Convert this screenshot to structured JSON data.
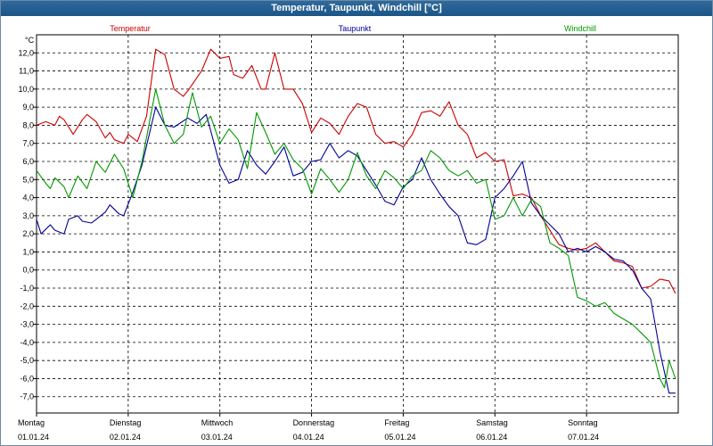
{
  "window": {
    "title": "Temperatur, Taupunkt, Windchill [°C]"
  },
  "chart_data": {
    "type": "line",
    "title": "Temperatur, Taupunkt, Windchill [°C]",
    "ylabel": "°C",
    "ylim": [
      -7.9,
      13.0
    ],
    "yticks": [
      12.0,
      11.0,
      10.0,
      9.0,
      8.0,
      7.0,
      6.0,
      5.0,
      4.0,
      3.0,
      2.0,
      1.0,
      0.0,
      -1.0,
      -2.0,
      -3.0,
      -4.0,
      -5.0,
      -6.0,
      -7.0
    ],
    "ytick_labels": [
      "12,0",
      "11,0",
      "10,0",
      "9,0",
      "8,0",
      "7,0",
      "6,0",
      "5,0",
      "4,0",
      "3,0",
      "2,0",
      "1,0",
      "0,0",
      "-1,0",
      "-2,0",
      "-3,0",
      "-4,0",
      "-5,0",
      "-6,0",
      "-7,0"
    ],
    "xlim": [
      0,
      7
    ],
    "x_days": [
      {
        "day": "Montag",
        "date": "01.01.24"
      },
      {
        "day": "Dienstag",
        "date": "02.01.24"
      },
      {
        "day": "Mittwoch",
        "date": "03.01.24"
      },
      {
        "day": "Donnerstag",
        "date": "04.01.24"
      },
      {
        "day": "Freitag",
        "date": "05.01.24"
      },
      {
        "day": "Samstag",
        "date": "06.01.24"
      },
      {
        "day": "Sonntag",
        "date": "07.01.24"
      }
    ],
    "grid": true,
    "legend_position": "top",
    "series": [
      {
        "name": "Temperatur",
        "color": "#cc0000",
        "x": [
          0,
          0.1,
          0.2,
          0.25,
          0.3,
          0.4,
          0.5,
          0.55,
          0.65,
          0.75,
          0.8,
          0.85,
          0.95,
          1.0,
          1.1,
          1.2,
          1.3,
          1.4,
          1.5,
          1.6,
          1.65,
          1.8,
          1.9,
          2.0,
          2.1,
          2.15,
          2.25,
          2.35,
          2.45,
          2.5,
          2.6,
          2.7,
          2.8,
          2.9,
          3.0,
          3.1,
          3.2,
          3.3,
          3.4,
          3.5,
          3.6,
          3.7,
          3.8,
          3.9,
          4.0,
          4.1,
          4.2,
          4.3,
          4.4,
          4.5,
          4.6,
          4.7,
          4.8,
          4.9,
          5.0,
          5.1,
          5.2,
          5.3,
          5.4,
          5.5,
          5.6,
          5.7,
          5.8,
          5.9,
          6.0,
          6.1,
          6.2,
          6.3,
          6.4,
          6.5,
          6.6,
          6.7,
          6.8,
          6.9,
          6.97
        ],
        "values": [
          8.0,
          8.2,
          8.0,
          8.5,
          8.3,
          7.5,
          8.3,
          8.6,
          8.2,
          7.3,
          7.6,
          7.2,
          7.0,
          7.5,
          7.1,
          8.5,
          12.2,
          11.9,
          10.0,
          9.6,
          9.9,
          11.0,
          12.2,
          11.7,
          11.8,
          10.8,
          10.6,
          11.3,
          10.0,
          10.0,
          12.0,
          10.0,
          10.0,
          9.2,
          7.6,
          8.4,
          8.1,
          7.5,
          8.5,
          9.2,
          9.0,
          7.5,
          7.0,
          7.1,
          6.8,
          7.5,
          8.7,
          8.8,
          8.5,
          9.3,
          8.0,
          7.5,
          6.2,
          6.5,
          6.0,
          6.1,
          4.1,
          4.2,
          4.0,
          3.0,
          2.2,
          1.4,
          1.2,
          1.1,
          1.2,
          1.5,
          1.0,
          0.5,
          0.4,
          0.2,
          -1.0,
          -0.9,
          -0.5,
          -0.6,
          -1.3
        ]
      },
      {
        "name": "Taupunkt",
        "color": "#000099",
        "x": [
          0,
          0.05,
          0.15,
          0.2,
          0.3,
          0.35,
          0.45,
          0.5,
          0.6,
          0.65,
          0.75,
          0.8,
          0.9,
          0.95,
          1.05,
          1.15,
          1.3,
          1.4,
          1.5,
          1.65,
          1.75,
          1.85,
          1.9,
          2.0,
          2.1,
          2.2,
          2.3,
          2.4,
          2.5,
          2.6,
          2.7,
          2.8,
          2.9,
          3.0,
          3.1,
          3.2,
          3.3,
          3.4,
          3.5,
          3.6,
          3.7,
          3.8,
          3.9,
          4.0,
          4.1,
          4.2,
          4.3,
          4.4,
          4.5,
          4.6,
          4.7,
          4.8,
          4.9,
          5.0,
          5.1,
          5.2,
          5.3,
          5.4,
          5.5,
          5.6,
          5.7,
          5.8,
          5.9,
          6.0,
          6.1,
          6.2,
          6.3,
          6.4,
          6.5,
          6.6,
          6.7,
          6.8,
          6.9,
          6.97
        ],
        "values": [
          2.8,
          2.0,
          2.5,
          2.2,
          2.0,
          2.8,
          3.0,
          2.7,
          2.6,
          2.8,
          3.2,
          3.6,
          3.1,
          3.0,
          4.3,
          5.8,
          9.0,
          8.0,
          7.9,
          8.4,
          8.1,
          8.6,
          7.7,
          5.8,
          4.8,
          5.0,
          6.6,
          5.8,
          5.3,
          6.0,
          6.8,
          5.2,
          5.4,
          6.0,
          6.1,
          7.0,
          6.2,
          6.6,
          6.3,
          5.5,
          4.7,
          3.8,
          3.6,
          4.6,
          5.0,
          6.2,
          5.0,
          4.2,
          3.5,
          3.0,
          1.5,
          1.4,
          1.7,
          4.0,
          4.5,
          5.2,
          6.0,
          3.7,
          3.0,
          2.5,
          2.0,
          1.0,
          1.2,
          1.0,
          1.3,
          1.0,
          0.6,
          0.5,
          0.0,
          -1.0,
          -1.6,
          -4.5,
          -6.8,
          -6.8
        ]
      },
      {
        "name": "Windchill",
        "color": "#009900",
        "x": [
          0,
          0.1,
          0.15,
          0.2,
          0.3,
          0.35,
          0.45,
          0.55,
          0.65,
          0.75,
          0.85,
          0.95,
          1.05,
          1.15,
          1.3,
          1.4,
          1.5,
          1.6,
          1.7,
          1.8,
          1.9,
          2.0,
          2.1,
          2.2,
          2.3,
          2.4,
          2.5,
          2.6,
          2.7,
          2.8,
          2.9,
          3.0,
          3.1,
          3.2,
          3.3,
          3.4,
          3.5,
          3.6,
          3.7,
          3.8,
          3.9,
          4.0,
          4.1,
          4.2,
          4.3,
          4.4,
          4.5,
          4.6,
          4.7,
          4.8,
          4.9,
          5.0,
          5.1,
          5.2,
          5.3,
          5.4,
          5.5,
          5.6,
          5.7,
          5.8,
          5.9,
          6.0,
          6.1,
          6.2,
          6.3,
          6.4,
          6.5,
          6.6,
          6.7,
          6.8,
          6.85,
          6.9,
          6.97
        ],
        "values": [
          5.5,
          4.8,
          4.5,
          5.1,
          4.6,
          4.0,
          5.2,
          4.5,
          6.0,
          5.4,
          6.4,
          5.6,
          4.0,
          6.0,
          10.0,
          8.0,
          7.0,
          7.5,
          9.8,
          7.9,
          8.5,
          7.0,
          7.8,
          7.2,
          5.6,
          8.7,
          7.6,
          6.4,
          7.0,
          6.1,
          5.6,
          4.2,
          5.6,
          5.0,
          4.3,
          5.0,
          6.5,
          5.2,
          4.5,
          5.5,
          5.1,
          4.5,
          5.2,
          5.5,
          6.6,
          6.2,
          5.5,
          5.2,
          5.5,
          4.8,
          5.0,
          2.8,
          3.0,
          4.0,
          3.0,
          3.9,
          3.5,
          1.5,
          1.2,
          0.8,
          -1.5,
          -1.7,
          -2.0,
          -1.8,
          -2.4,
          -2.7,
          -3.0,
          -3.5,
          -4.0,
          -6.0,
          -6.5,
          -5.0,
          -6.0
        ]
      }
    ]
  }
}
